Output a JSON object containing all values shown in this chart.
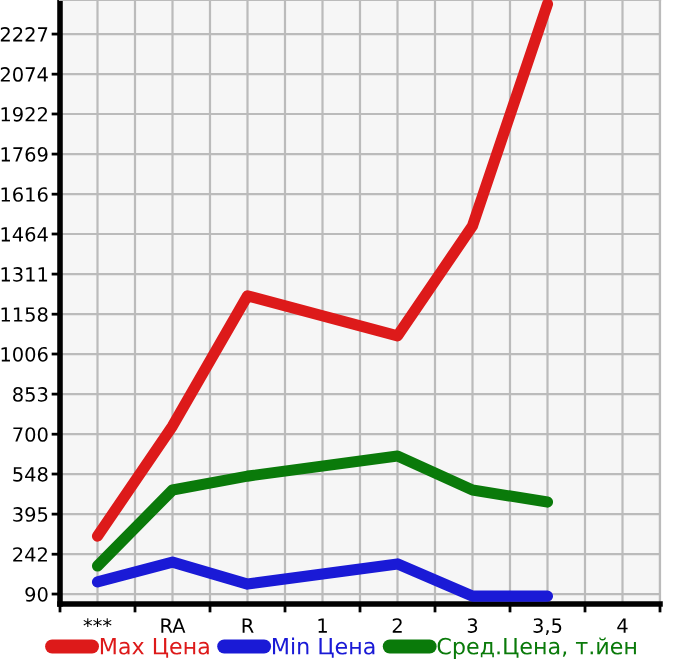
{
  "chart_data": {
    "type": "line",
    "categories": [
      "***",
      "RA",
      "R",
      "1",
      "2",
      "3",
      "3,5",
      "4"
    ],
    "series": [
      {
        "name": "Max Цена",
        "color": "#dd1a1a",
        "values": [
          311,
          731,
          1228,
          null,
          1075,
          1495,
          2342,
          null
        ]
      },
      {
        "name": "Min Цена",
        "color": "#1a1ad6",
        "values": [
          136,
          212,
          128,
          null,
          205,
          82,
          82,
          null
        ]
      },
      {
        "name": "Сред.Цена, т.йен",
        "color": "#0a7a0a",
        "values": [
          197,
          487,
          540,
          null,
          617,
          487,
          441,
          null
        ]
      }
    ],
    "ylim": [
      52,
      2357
    ],
    "yticks": [
      90,
      242,
      395,
      548,
      700,
      853,
      1006,
      1158,
      1311,
      1464,
      1616,
      1769,
      1922,
      2074,
      2227
    ],
    "grid": true,
    "legend": "bottom",
    "marker": "none",
    "line_style": "solid"
  }
}
